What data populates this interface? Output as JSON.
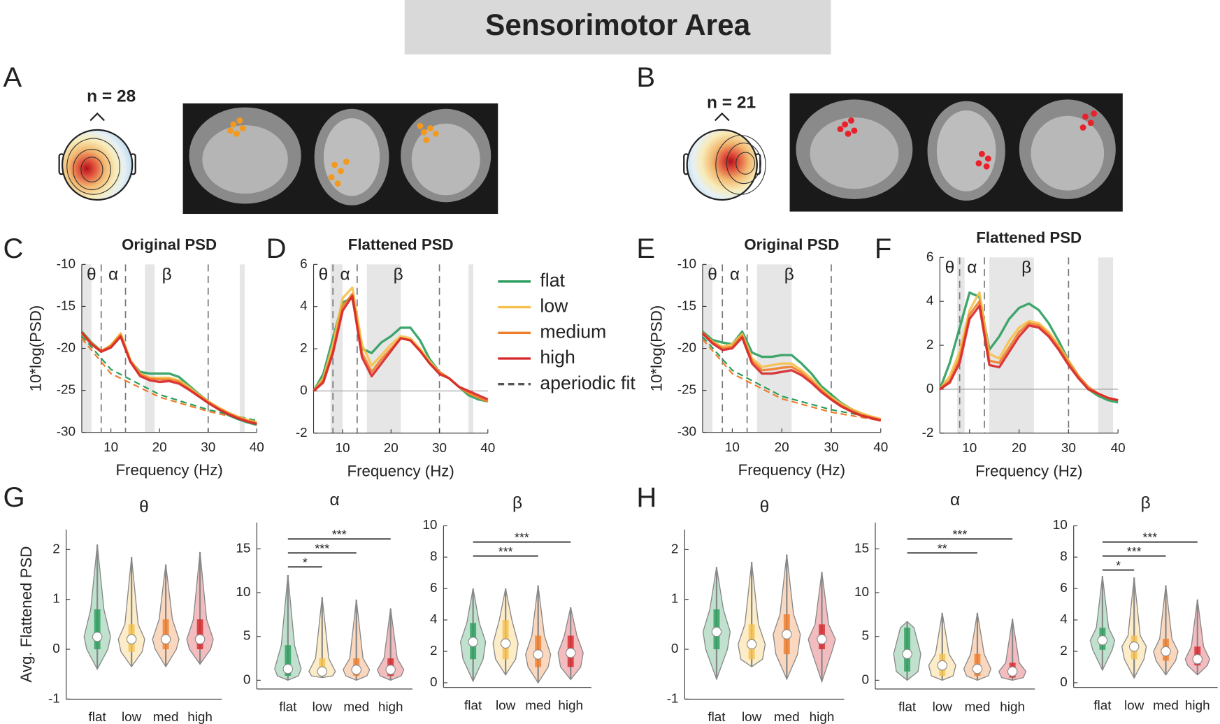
{
  "title": "Sensorimotor Area",
  "panel_labels": [
    "A",
    "B",
    "C",
    "D",
    "E",
    "F",
    "G",
    "H"
  ],
  "topomaps": [
    {
      "n_label": "n = 28"
    },
    {
      "n_label": "n = 21"
    }
  ],
  "chart_data": [
    {
      "type": "line",
      "title": "Original PSD",
      "ylabel": "10*log(PSD)",
      "xlabel": "Frequency (Hz)",
      "x": [
        4,
        6,
        8,
        10,
        12,
        14,
        16,
        18,
        20,
        22,
        24,
        26,
        28,
        30,
        32,
        34,
        36,
        38,
        40
      ],
      "xlim": [
        4,
        40
      ],
      "xticks": [
        10,
        20,
        30,
        40
      ],
      "ylim": [
        -30,
        -10
      ],
      "yticks": [
        -30,
        -25,
        -20,
        -15,
        -10
      ],
      "bands": [
        "θ",
        "α",
        "β"
      ],
      "vlines": [
        8,
        13,
        30
      ],
      "shaded": [
        [
          4,
          6
        ],
        [
          17,
          19
        ],
        [
          36.5,
          37.5
        ]
      ],
      "series": [
        {
          "name": "flat",
          "color": "#2a9d5c",
          "values": [
            -18,
            -19.3,
            -20.3,
            -19.8,
            -18.5,
            -21.5,
            -22.8,
            -23,
            -23,
            -23,
            -23.4,
            -24.4,
            -25.4,
            -26.3,
            -27.2,
            -27.9,
            -28.4,
            -28.8,
            -29.1
          ]
        },
        {
          "name": "low",
          "color": "#f6c04a",
          "values": [
            -18.2,
            -19.5,
            -20.4,
            -19.6,
            -18.2,
            -21.4,
            -23,
            -23.5,
            -23.5,
            -23.5,
            -23.8,
            -24.6,
            -25.5,
            -26.3,
            -27,
            -27.6,
            -28.1,
            -28.5,
            -28.8
          ]
        },
        {
          "name": "medium",
          "color": "#ef7d2a",
          "values": [
            -18.1,
            -19.4,
            -20.3,
            -19.7,
            -18.4,
            -21.5,
            -23.1,
            -23.6,
            -23.7,
            -23.7,
            -24,
            -24.8,
            -25.6,
            -26.4,
            -27.1,
            -27.7,
            -28.2,
            -28.6,
            -28.9
          ]
        },
        {
          "name": "high",
          "color": "#d7262a",
          "values": [
            -18.1,
            -19.5,
            -20.4,
            -19.9,
            -18.6,
            -21.6,
            -23.3,
            -23.8,
            -24,
            -23.9,
            -24.2,
            -24.9,
            -25.7,
            -26.5,
            -27.2,
            -27.8,
            -28.3,
            -28.7,
            -29
          ]
        }
      ],
      "fits": [
        {
          "color": "#2a9d5c",
          "x": [
            4,
            10,
            20,
            30,
            40
          ],
          "values": [
            -18.5,
            -22.5,
            -25.5,
            -27.3,
            -28.6
          ]
        },
        {
          "color": "#ef7d2a",
          "x": [
            4,
            10,
            20,
            30,
            40
          ],
          "values": [
            -18.8,
            -23,
            -25.8,
            -27.5,
            -28.8
          ]
        }
      ]
    },
    {
      "type": "line",
      "title": "Flattened PSD",
      "xlabel": "Frequency (Hz)",
      "x": [
        4,
        6,
        8,
        10,
        12,
        14,
        16,
        18,
        20,
        22,
        24,
        26,
        28,
        30,
        32,
        34,
        36,
        38,
        40
      ],
      "xlim": [
        4,
        40
      ],
      "xticks": [
        10,
        20,
        30,
        40
      ],
      "ylim": [
        -2,
        6
      ],
      "yticks": [
        -2,
        0,
        2,
        4,
        6
      ],
      "hline": 0,
      "bands": [
        "θ",
        "α",
        "β"
      ],
      "vlines": [
        8,
        13,
        30
      ],
      "shaded": [
        [
          7.5,
          10
        ],
        [
          15,
          22
        ],
        [
          36,
          37
        ]
      ],
      "fit_legend": "aperiodic fit",
      "fit_legend_color": "#555555",
      "series": [
        {
          "name": "flat",
          "color": "#2a9d5c",
          "values": [
            0,
            0.8,
            2.5,
            4.2,
            4.4,
            2.0,
            1.8,
            2.3,
            2.6,
            3.0,
            3.0,
            2.4,
            1.5,
            0.9,
            0.6,
            0.2,
            -0.2,
            -0.4,
            -0.5
          ]
        },
        {
          "name": "low",
          "color": "#f6c04a",
          "values": [
            0,
            0.6,
            2.2,
            4.4,
            4.9,
            2.2,
            1.2,
            1.7,
            2.2,
            2.6,
            2.5,
            2.0,
            1.4,
            0.9,
            0.6,
            0.2,
            -0.1,
            -0.3,
            -0.5
          ]
        },
        {
          "name": "medium",
          "color": "#ef7d2a",
          "values": [
            0,
            0.5,
            1.9,
            4.0,
            4.6,
            1.8,
            0.9,
            1.5,
            2.0,
            2.5,
            2.4,
            1.9,
            1.3,
            0.9,
            0.6,
            0.2,
            -0.1,
            -0.3,
            -0.5
          ]
        },
        {
          "name": "high",
          "color": "#d7262a",
          "values": [
            0,
            0.4,
            1.8,
            3.8,
            4.5,
            1.6,
            0.7,
            1.3,
            1.9,
            2.5,
            2.4,
            1.9,
            1.3,
            0.8,
            0.6,
            0.2,
            0,
            -0.2,
            -0.4
          ]
        }
      ]
    },
    {
      "type": "line",
      "title": "Original PSD",
      "ylabel": "10*log(PSD)",
      "xlabel": "Frequency (Hz)",
      "x": [
        4,
        6,
        8,
        10,
        12,
        14,
        16,
        18,
        20,
        22,
        24,
        26,
        28,
        30,
        32,
        34,
        36,
        38,
        40
      ],
      "xlim": [
        4,
        40
      ],
      "xticks": [
        10,
        20,
        30,
        40
      ],
      "ylim": [
        -30,
        -10
      ],
      "yticks": [
        -30,
        -25,
        -20,
        -15,
        -10
      ],
      "bands": [
        "θ",
        "α",
        "β"
      ],
      "vlines": [
        8,
        13,
        30
      ],
      "shaded": [
        [
          4,
          6
        ],
        [
          15,
          22
        ]
      ],
      "series": [
        {
          "name": "flat",
          "color": "#2a9d5c",
          "values": [
            -18,
            -19,
            -19.3,
            -19.5,
            -18,
            -20.5,
            -21,
            -21,
            -20.8,
            -20.8,
            -21.8,
            -23,
            -24.5,
            -25.5,
            -26.5,
            -27.2,
            -27.8,
            -28.2,
            -28.5
          ]
        },
        {
          "name": "low",
          "color": "#f6c04a",
          "values": [
            -18.2,
            -19.2,
            -19.8,
            -19.5,
            -18.3,
            -21.2,
            -22.2,
            -22,
            -21.8,
            -21.8,
            -22.6,
            -23.6,
            -24.8,
            -25.8,
            -26.6,
            -27.2,
            -27.7,
            -28.1,
            -28.4
          ]
        },
        {
          "name": "medium",
          "color": "#ef7d2a",
          "values": [
            -18.1,
            -19.3,
            -20,
            -19.8,
            -18.5,
            -21.5,
            -22.6,
            -22.5,
            -22.3,
            -22.2,
            -22.9,
            -23.9,
            -25,
            -26,
            -26.8,
            -27.4,
            -27.9,
            -28.2,
            -28.5
          ]
        },
        {
          "name": "high",
          "color": "#d7262a",
          "values": [
            -18.2,
            -19.4,
            -20.2,
            -20,
            -18.7,
            -21.8,
            -23,
            -23,
            -22.8,
            -22.6,
            -23.2,
            -24.1,
            -25.2,
            -26.1,
            -26.9,
            -27.5,
            -28,
            -28.3,
            -28.6
          ]
        }
      ],
      "fits": [
        {
          "color": "#2a9d5c",
          "x": [
            4,
            10,
            20,
            30,
            40
          ],
          "values": [
            -18.6,
            -22.6,
            -25.7,
            -27.3,
            -28.4
          ]
        },
        {
          "color": "#ef7d2a",
          "x": [
            4,
            10,
            20,
            30,
            40
          ],
          "values": [
            -18.9,
            -23,
            -26,
            -27.6,
            -28.6
          ]
        }
      ]
    },
    {
      "type": "line",
      "title": "Flattened PSD",
      "xlabel": "Frequency (Hz)",
      "x": [
        4,
        6,
        8,
        10,
        12,
        14,
        16,
        18,
        20,
        22,
        24,
        26,
        28,
        30,
        32,
        34,
        36,
        38,
        40
      ],
      "xlim": [
        4,
        40
      ],
      "xticks": [
        10,
        20,
        30,
        40
      ],
      "ylim": [
        -2,
        6
      ],
      "yticks": [
        -2,
        0,
        2,
        4,
        6
      ],
      "hline": 0,
      "bands": [
        "θ",
        "α",
        "β"
      ],
      "vlines": [
        8,
        13,
        30
      ],
      "shaded": [
        [
          7.5,
          9
        ],
        [
          14,
          23
        ],
        [
          36,
          39
        ]
      ],
      "series": [
        {
          "name": "flat",
          "color": "#2a9d5c",
          "values": [
            0,
            1.2,
            2.8,
            4.4,
            4.2,
            1.8,
            2.4,
            3.2,
            3.7,
            3.9,
            3.6,
            3.0,
            2.2,
            1.3,
            0.6,
            0,
            -0.3,
            -0.5,
            -0.6
          ]
        },
        {
          "name": "low",
          "color": "#f6c04a",
          "values": [
            0,
            0.6,
            1.7,
            3.6,
            4.4,
            1.6,
            1.4,
            2.2,
            2.8,
            3.1,
            3.0,
            2.6,
            2.0,
            1.3,
            0.6,
            0,
            -0.2,
            -0.4,
            -0.5
          ]
        },
        {
          "name": "medium",
          "color": "#ef7d2a",
          "values": [
            0,
            0.4,
            1.4,
            3.4,
            4.0,
            1.3,
            1.2,
            1.9,
            2.6,
            3.0,
            2.9,
            2.5,
            1.9,
            1.2,
            0.6,
            0.1,
            -0.2,
            -0.4,
            -0.5
          ]
        },
        {
          "name": "high",
          "color": "#d7262a",
          "values": [
            0,
            0.3,
            1.2,
            3.2,
            3.8,
            1.1,
            1.0,
            1.7,
            2.4,
            2.9,
            2.8,
            2.4,
            1.8,
            1.1,
            0.5,
            0,
            -0.2,
            -0.4,
            -0.5
          ]
        }
      ]
    },
    {
      "type": "violin",
      "title": "θ",
      "ylabel": "Avg. Flattened PSD",
      "categories": [
        "flat",
        "low",
        "med",
        "high"
      ],
      "colors": [
        "#2a9d5c",
        "#f6c04a",
        "#ef7d2a",
        "#d7262a"
      ],
      "ylim": [
        -1,
        2.4
      ],
      "yticks": [
        -1,
        0,
        1,
        2
      ],
      "stats": [
        {
          "min": -0.4,
          "q1": 0,
          "median": 0.25,
          "q3": 0.8,
          "max": 2.1
        },
        {
          "min": -0.35,
          "q1": -0.05,
          "median": 0.2,
          "q3": 0.5,
          "max": 1.85
        },
        {
          "min": -0.35,
          "q1": 0,
          "median": 0.2,
          "q3": 0.6,
          "max": 1.7
        },
        {
          "min": -0.3,
          "q1": 0,
          "median": 0.2,
          "q3": 0.6,
          "max": 1.95
        }
      ],
      "significance": []
    },
    {
      "type": "violin",
      "title": "α",
      "categories": [
        "flat",
        "low",
        "med",
        "high"
      ],
      "colors": [
        "#2a9d5c",
        "#f6c04a",
        "#ef7d2a",
        "#d7262a"
      ],
      "ylim": [
        -1,
        18
      ],
      "yticks": [
        0,
        5,
        10,
        15
      ],
      "stats": [
        {
          "min": 0,
          "q1": 0.5,
          "median": 1.3,
          "q3": 4,
          "max": 12
        },
        {
          "min": 0.3,
          "q1": 0.5,
          "median": 1,
          "q3": 2.5,
          "max": 9.5
        },
        {
          "min": 0,
          "q1": 0.5,
          "median": 1.2,
          "q3": 2.5,
          "max": 9.2
        },
        {
          "min": 0,
          "q1": 0.5,
          "median": 1.2,
          "q3": 2.5,
          "max": 8.2
        }
      ],
      "significance": [
        {
          "pair": [
            "flat",
            "low"
          ],
          "label": "*"
        },
        {
          "pair": [
            "flat",
            "med"
          ],
          "label": "***"
        },
        {
          "pair": [
            "flat",
            "high"
          ],
          "label": "***"
        }
      ]
    },
    {
      "type": "violin",
      "title": "β",
      "categories": [
        "flat",
        "low",
        "med",
        "high"
      ],
      "colors": [
        "#2a9d5c",
        "#f6c04a",
        "#ef7d2a",
        "#d7262a"
      ],
      "ylim": [
        -0.3,
        10
      ],
      "yticks": [
        0,
        2,
        4,
        6,
        8,
        10
      ],
      "stats": [
        {
          "min": 0.1,
          "q1": 1.5,
          "median": 2.6,
          "q3": 3.8,
          "max": 6
        },
        {
          "min": 0.5,
          "q1": 1.5,
          "median": 2.5,
          "q3": 4,
          "max": 6
        },
        {
          "min": 0,
          "q1": 1,
          "median": 1.8,
          "q3": 3,
          "max": 6.2
        },
        {
          "min": 0.2,
          "q1": 1,
          "median": 1.9,
          "q3": 3,
          "max": 4.8
        }
      ],
      "significance": [
        {
          "pair": [
            "flat",
            "med"
          ],
          "label": "***"
        },
        {
          "pair": [
            "flat",
            "high"
          ],
          "label": "***"
        }
      ]
    },
    {
      "type": "violin",
      "title": "θ",
      "categories": [
        "flat",
        "low",
        "med",
        "high"
      ],
      "colors": [
        "#2a9d5c",
        "#f6c04a",
        "#ef7d2a",
        "#d7262a"
      ],
      "ylim": [
        -1,
        2.4
      ],
      "yticks": [
        -1,
        0,
        1,
        2
      ],
      "stats": [
        {
          "min": -0.6,
          "q1": 0,
          "median": 0.35,
          "q3": 0.8,
          "max": 1.65
        },
        {
          "min": -0.35,
          "q1": -0.2,
          "median": 0.1,
          "q3": 0.5,
          "max": 1.75
        },
        {
          "min": -0.6,
          "q1": -0.1,
          "median": 0.3,
          "q3": 0.7,
          "max": 1.9
        },
        {
          "min": -0.65,
          "q1": 0,
          "median": 0.2,
          "q3": 0.5,
          "max": 1.55
        }
      ],
      "significance": []
    },
    {
      "type": "violin",
      "title": "α",
      "categories": [
        "flat",
        "low",
        "med",
        "high"
      ],
      "colors": [
        "#2a9d5c",
        "#f6c04a",
        "#ef7d2a",
        "#d7262a"
      ],
      "ylim": [
        -1,
        18
      ],
      "yticks": [
        0,
        5,
        10,
        15
      ],
      "stats": [
        {
          "min": 0,
          "q1": 1,
          "median": 3,
          "q3": 6,
          "max": 6.7
        },
        {
          "min": 0,
          "q1": 0.5,
          "median": 1.7,
          "q3": 3,
          "max": 7.7
        },
        {
          "min": 0,
          "q1": 0.5,
          "median": 1.3,
          "q3": 3,
          "max": 7.7
        },
        {
          "min": 0,
          "q1": 0.3,
          "median": 1,
          "q3": 2,
          "max": 7
        }
      ],
      "significance": [
        {
          "pair": [
            "flat",
            "med"
          ],
          "label": "**"
        },
        {
          "pair": [
            "flat",
            "high"
          ],
          "label": "***"
        }
      ]
    },
    {
      "type": "violin",
      "title": "β",
      "categories": [
        "flat",
        "low",
        "med",
        "high"
      ],
      "colors": [
        "#2a9d5c",
        "#f6c04a",
        "#ef7d2a",
        "#d7262a"
      ],
      "ylim": [
        -0.3,
        10
      ],
      "yticks": [
        0,
        2,
        4,
        6,
        8,
        10
      ],
      "stats": [
        {
          "min": 0.8,
          "q1": 2.1,
          "median": 2.7,
          "q3": 3.5,
          "max": 6.8
        },
        {
          "min": 0.3,
          "q1": 1.5,
          "median": 2.3,
          "q3": 3,
          "max": 6.7
        },
        {
          "min": 0.5,
          "q1": 1.4,
          "median": 2,
          "q3": 2.8,
          "max": 6.2
        },
        {
          "min": 0.5,
          "q1": 1.1,
          "median": 1.5,
          "q3": 2.3,
          "max": 5.3
        }
      ],
      "significance": [
        {
          "pair": [
            "flat",
            "low"
          ],
          "label": "*"
        },
        {
          "pair": [
            "flat",
            "med"
          ],
          "label": "***"
        },
        {
          "pair": [
            "flat",
            "high"
          ],
          "label": "***"
        }
      ]
    }
  ]
}
